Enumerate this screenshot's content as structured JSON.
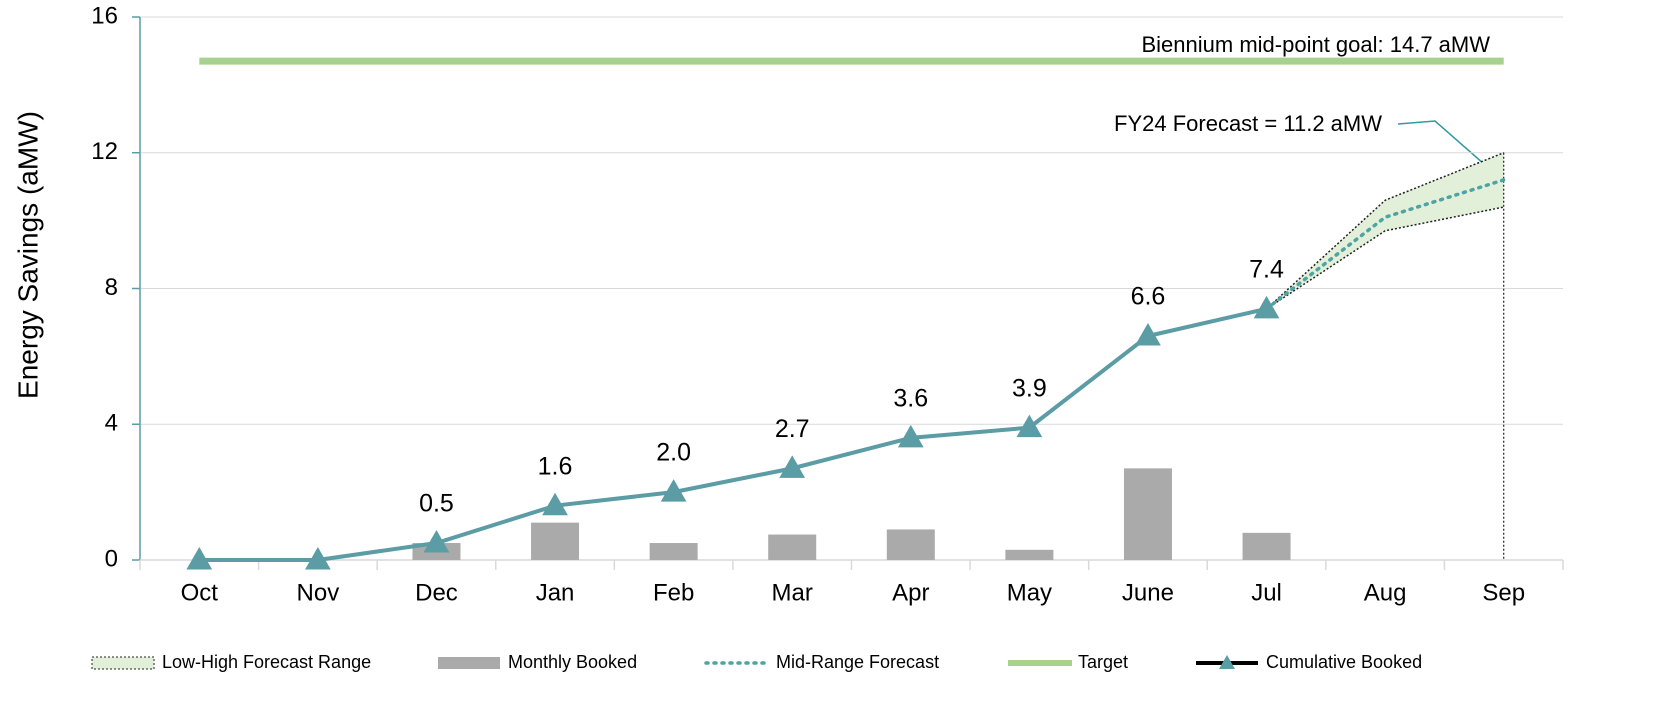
{
  "chart_data": {
    "type": "combo",
    "y_label": "Energy Savings (aMW)",
    "categories": [
      "Oct",
      "Nov",
      "Dec",
      "Jan",
      "Feb",
      "Mar",
      "Apr",
      "May",
      "June",
      "Jul",
      "Aug",
      "Sep"
    ],
    "ylim": [
      0,
      16
    ],
    "yticks": [
      0,
      4,
      8,
      12,
      16
    ],
    "grid": true,
    "legend": "bottom",
    "annotations": [
      "Biennium mid-point goal:  14.7 aMW",
      "FY24 Forecast = 11.2 aMW"
    ],
    "series": [
      {
        "name": "Low-High Forecast Range",
        "type": "range",
        "color": "#e2f0d9",
        "low": [
          null,
          null,
          null,
          null,
          null,
          null,
          null,
          null,
          null,
          7.4,
          9.7,
          10.4
        ],
        "high": [
          null,
          null,
          null,
          null,
          null,
          null,
          null,
          null,
          null,
          7.4,
          10.6,
          12.0
        ]
      },
      {
        "name": "Monthly Booked",
        "type": "bar",
        "color": "#aaaaaa",
        "values": [
          0,
          0,
          0.5,
          1.1,
          0.5,
          0.75,
          0.9,
          0.3,
          2.7,
          0.8,
          null,
          null
        ]
      },
      {
        "name": "Mid-Range Forecast",
        "type": "line",
        "linestyle": "dotted",
        "color": "#4fa3a5",
        "values": [
          null,
          null,
          null,
          null,
          null,
          null,
          null,
          null,
          null,
          7.4,
          10.1,
          11.2
        ]
      },
      {
        "name": "Target",
        "type": "line",
        "linestyle": "solid",
        "color": "#a9d18e",
        "values": [
          14.7,
          14.7,
          14.7,
          14.7,
          14.7,
          14.7,
          14.7,
          14.7,
          14.7,
          14.7,
          14.7,
          14.7
        ]
      },
      {
        "name": "Cumulative Booked",
        "type": "line",
        "linestyle": "solid",
        "marker": "triangle",
        "color": "#5b9ca5",
        "values": [
          0,
          0,
          0.5,
          1.6,
          2.0,
          2.7,
          3.6,
          3.9,
          6.6,
          7.4,
          null,
          null
        ],
        "value_labels": [
          null,
          null,
          "0.5",
          "1.6",
          "2.0",
          "2.7",
          "3.6",
          "3.9",
          "6.6",
          "7.4",
          null,
          null
        ]
      }
    ]
  }
}
